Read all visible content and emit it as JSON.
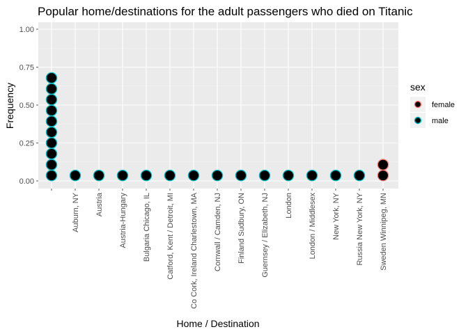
{
  "chart_data": {
    "type": "scatter",
    "title": "Popular home/destinations for the adult passengers who died on Titanic",
    "xlabel": "Home / Destination",
    "ylabel": "Frequency",
    "ylim": [
      0,
      1.0
    ],
    "yticks": [
      "0.00",
      "0.25",
      "0.50",
      "0.75",
      "1.00"
    ],
    "categories": [
      "",
      "Auburn, NY",
      "Austria",
      "Austria-Hungary",
      "Bulgaria Chicago, IL",
      "Catford, Kent / Detroit, MI",
      "Co Cork, Ireland Charlestown, MA",
      "Cornwall / Camden, NJ",
      "Finland Sudbury, ON",
      "Guernsey / Elizabeth, NJ",
      "London",
      "London / Middlesex",
      "New York, NY",
      "Russia New York, NY",
      "Sweden Winnipeg, MN"
    ],
    "series": [
      {
        "name": "female",
        "color": "#F8766D",
        "points": [
          {
            "x": "Sweden Winnipeg, MN",
            "y": 0.036
          },
          {
            "x": "Sweden Winnipeg, MN",
            "y": 0.107
          }
        ]
      },
      {
        "name": "male",
        "color": "#00BFC4",
        "points": [
          {
            "x": "",
            "y": 0.036
          },
          {
            "x": "",
            "y": 0.107
          },
          {
            "x": "",
            "y": 0.179
          },
          {
            "x": "",
            "y": 0.25
          },
          {
            "x": "",
            "y": 0.321
          },
          {
            "x": "",
            "y": 0.393
          },
          {
            "x": "",
            "y": 0.464
          },
          {
            "x": "",
            "y": 0.536
          },
          {
            "x": "",
            "y": 0.607
          },
          {
            "x": "",
            "y": 0.679
          },
          {
            "x": "Auburn, NY",
            "y": 0.036
          },
          {
            "x": "Austria",
            "y": 0.036
          },
          {
            "x": "Austria-Hungary",
            "y": 0.036
          },
          {
            "x": "Bulgaria Chicago, IL",
            "y": 0.036
          },
          {
            "x": "Catford, Kent / Detroit, MI",
            "y": 0.036
          },
          {
            "x": "Co Cork, Ireland Charlestown, MA",
            "y": 0.036
          },
          {
            "x": "Cornwall / Camden, NJ",
            "y": 0.036
          },
          {
            "x": "Finland Sudbury, ON",
            "y": 0.036
          },
          {
            "x": "Guernsey / Elizabeth, NJ",
            "y": 0.036
          },
          {
            "x": "London",
            "y": 0.036
          },
          {
            "x": "London / Middlesex",
            "y": 0.036
          },
          {
            "x": "New York, NY",
            "y": 0.036
          },
          {
            "x": "Russia New York, NY",
            "y": 0.036
          }
        ]
      }
    ],
    "legend": {
      "title": "sex",
      "position": "right",
      "entries": [
        "female",
        "male"
      ]
    },
    "grid": true,
    "panel_color": "#EBEBEB",
    "point_fill": "#000000"
  }
}
